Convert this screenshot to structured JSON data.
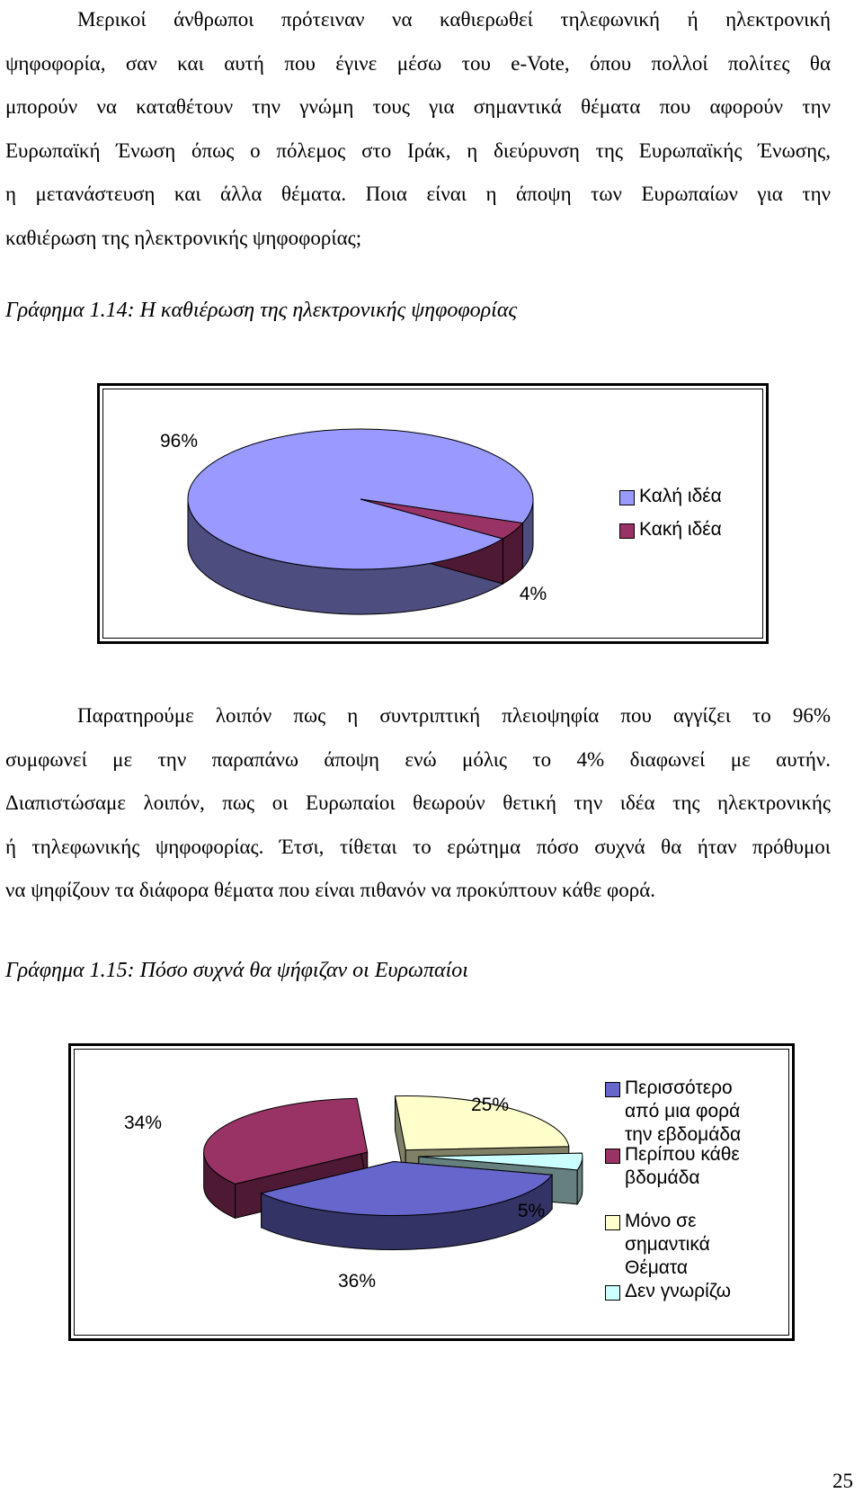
{
  "paragraph1": {
    "lines": [
      "Μερικοί άνθρωποι πρότειναν να καθιερωθεί τηλεφωνική ή ηλεκτρονική",
      "ψηφοφορία, σαν και αυτή που έγινε μέσω του e-Vote, όπου πολλοί πολίτες θα",
      "μπορούν να καταθέτουν την γνώμη τους για σημαντικά θέματα που αφορούν την",
      "Ευρωπαϊκή Ένωση όπως ο πόλεμος στο Ιράκ, η διεύρυνση της Ευρωπαϊκής Ένωσης,",
      "η μετανάστευση και άλλα θέματα. Ποια είναι η άποψη των Ευρωπαίων για την",
      "καθιέρωση της ηλεκτρονικής ψηφοφορίας;"
    ]
  },
  "chart1_caption": "Γράφημα 1.14: Η καθιέρωση της ηλεκτρονικής ψηφοφορίας",
  "paragraph2": {
    "lines": [
      "Παρατηρούμε λοιπόν πως η συντριπτική πλειοψηφία που αγγίζει το 96%",
      "συμφωνεί με την παραπάνω άποψη ενώ μόλις το 4% διαφωνεί με αυτήν.",
      "Διαπιστώσαμε λοιπόν, πως οι Ευρωπαίοι θεωρούν θετική την ιδέα της ηλεκτρονικής",
      "ή τηλεφωνικής ψηφοφορίας. Έτσι, τίθεται το ερώτημα πόσο συχνά θα ήταν πρόθυμοι",
      "να ψηφίζουν τα διάφορα θέματα που είναι πιθανόν να προκύπτουν κάθε φορά."
    ]
  },
  "chart2_caption": "Γράφημα 1.15: Πόσο συχνά θα ψήφιζαν οι Ευρωπαίοι",
  "page_number": "25",
  "chart_data": [
    {
      "type": "pie",
      "style": "3d",
      "title": "",
      "categories": [
        "Καλή ιδέα",
        "Κακή ιδέα"
      ],
      "values": [
        96,
        4
      ],
      "data_labels": [
        "96%",
        "4%"
      ],
      "colors": [
        "#9999ff",
        "#993366"
      ],
      "side_colors": [
        "#4d4d80",
        "#4d1933"
      ],
      "legend_position": "right"
    },
    {
      "type": "pie",
      "style": "3d-exploded",
      "title": "",
      "categories": [
        "Περισσότερο από μια φορά την εβδομάδα",
        "Περίπου κάθε βδομάδα",
        "Μόνο σε σημαντικά Θέματα",
        "Δεν γνωρίζω"
      ],
      "legend_lines": [
        [
          "Περισσότερο",
          "από μια φορά",
          "την εβδομάδα"
        ],
        [
          "Περίπου κάθε",
          "βδομάδα"
        ],
        [
          "Μόνο σε",
          "σημαντικά",
          "Θέματα"
        ],
        [
          "Δεν γνωρίζω"
        ]
      ],
      "values": [
        36,
        34,
        25,
        5
      ],
      "data_labels": [
        "36%",
        "34%",
        "25%",
        "5%"
      ],
      "colors": [
        "#6666cc",
        "#993366",
        "#ffffcc",
        "#ccffff"
      ],
      "side_colors": [
        "#333366",
        "#4d1933",
        "#808066",
        "#668080"
      ],
      "legend_position": "right"
    }
  ]
}
